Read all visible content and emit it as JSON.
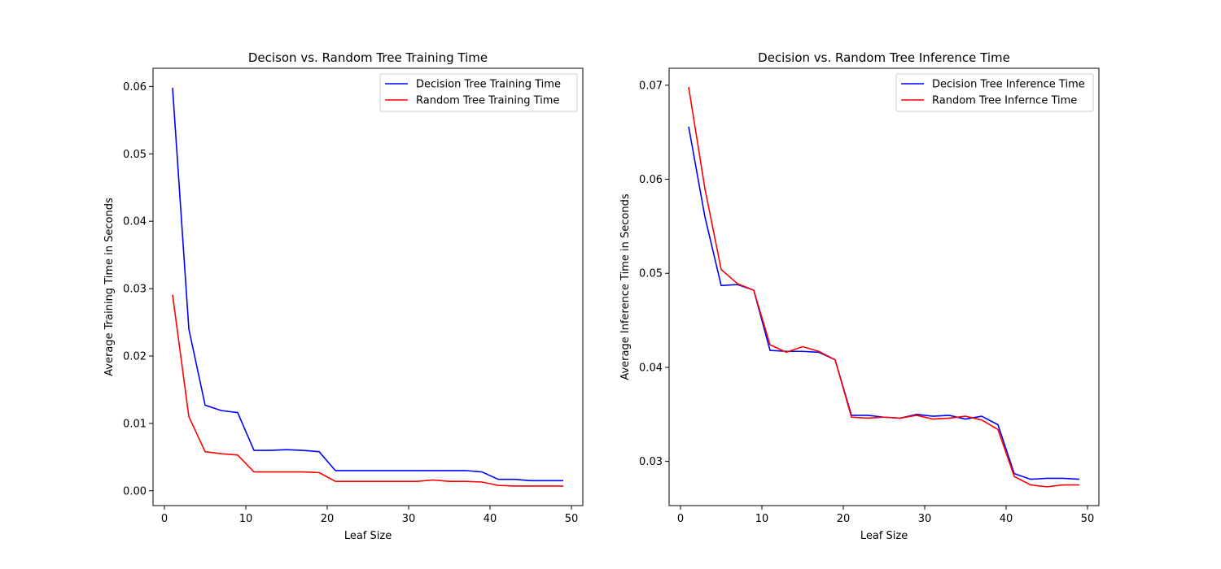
{
  "chart_data": [
    {
      "type": "line",
      "title": "Decison vs. Random Tree Training Time",
      "xlabel": "Leaf Size",
      "ylabel": "Average Training Time in Seconds",
      "xlim": [
        -1.4,
        51.4
      ],
      "ylim": [
        -0.0022,
        0.0627
      ],
      "xticks": [
        0,
        10,
        20,
        30,
        40,
        50
      ],
      "yticks": [
        0.0,
        0.01,
        0.02,
        0.03,
        0.04,
        0.05,
        0.06
      ],
      "ytick_labels": [
        "0.00",
        "0.01",
        "0.02",
        "0.03",
        "0.04",
        "0.05",
        "0.06"
      ],
      "legend_position": "top-right",
      "grid": false,
      "x": [
        1,
        3,
        5,
        7,
        9,
        11,
        13,
        15,
        17,
        19,
        21,
        23,
        25,
        27,
        29,
        31,
        33,
        35,
        37,
        39,
        41,
        43,
        45,
        47,
        49
      ],
      "series": [
        {
          "name": "Decision Tree Training Time",
          "color": "#0000ff",
          "values": [
            0.0598,
            0.024,
            0.0127,
            0.0119,
            0.0116,
            0.006,
            0.006,
            0.0061,
            0.006,
            0.0058,
            0.003,
            0.003,
            0.003,
            0.003,
            0.003,
            0.003,
            0.003,
            0.003,
            0.003,
            0.0028,
            0.0017,
            0.0017,
            0.0015,
            0.0015,
            0.0015
          ]
        },
        {
          "name": "Random Tree Training Time",
          "color": "#ff0000",
          "values": [
            0.0291,
            0.011,
            0.0058,
            0.0055,
            0.0053,
            0.0028,
            0.0028,
            0.0028,
            0.0028,
            0.0027,
            0.0014,
            0.0014,
            0.0014,
            0.0014,
            0.0014,
            0.0014,
            0.0016,
            0.0014,
            0.0014,
            0.0013,
            0.0008,
            0.0007,
            0.0007,
            0.0007,
            0.0007
          ]
        }
      ]
    },
    {
      "type": "line",
      "title": "Decision vs. Random Tree Inference Time",
      "xlabel": "Leaf Size",
      "ylabel": "Average Inference Time in Seconds",
      "xlim": [
        -1.4,
        51.4
      ],
      "ylim": [
        0.0253,
        0.0718
      ],
      "xticks": [
        0,
        10,
        20,
        30,
        40,
        50
      ],
      "yticks": [
        0.03,
        0.04,
        0.05,
        0.06,
        0.07
      ],
      "ytick_labels": [
        "0.03",
        "0.04",
        "0.05",
        "0.06",
        "0.07"
      ],
      "legend_position": "top-right",
      "grid": false,
      "x": [
        1,
        3,
        5,
        7,
        9,
        11,
        13,
        15,
        17,
        19,
        21,
        23,
        25,
        27,
        29,
        31,
        33,
        35,
        37,
        39,
        41,
        43,
        45,
        47,
        49
      ],
      "series": [
        {
          "name": "Decision Tree Inference Time",
          "color": "#0000ff",
          "values": [
            0.0656,
            0.056,
            0.0487,
            0.0488,
            0.0482,
            0.0418,
            0.0417,
            0.0417,
            0.0416,
            0.0408,
            0.0349,
            0.0349,
            0.0347,
            0.0346,
            0.035,
            0.0348,
            0.0349,
            0.0345,
            0.0348,
            0.0339,
            0.0287,
            0.0281,
            0.0282,
            0.0282,
            0.0281
          ]
        },
        {
          "name": "Random Tree Infernce Time",
          "color": "#ff0000",
          "values": [
            0.0698,
            0.059,
            0.0504,
            0.0489,
            0.0482,
            0.0424,
            0.0416,
            0.0422,
            0.0417,
            0.0408,
            0.0347,
            0.0346,
            0.0347,
            0.0346,
            0.0349,
            0.0345,
            0.0346,
            0.0348,
            0.0344,
            0.0334,
            0.0284,
            0.0275,
            0.0273,
            0.0275,
            0.0275
          ]
        }
      ]
    }
  ]
}
